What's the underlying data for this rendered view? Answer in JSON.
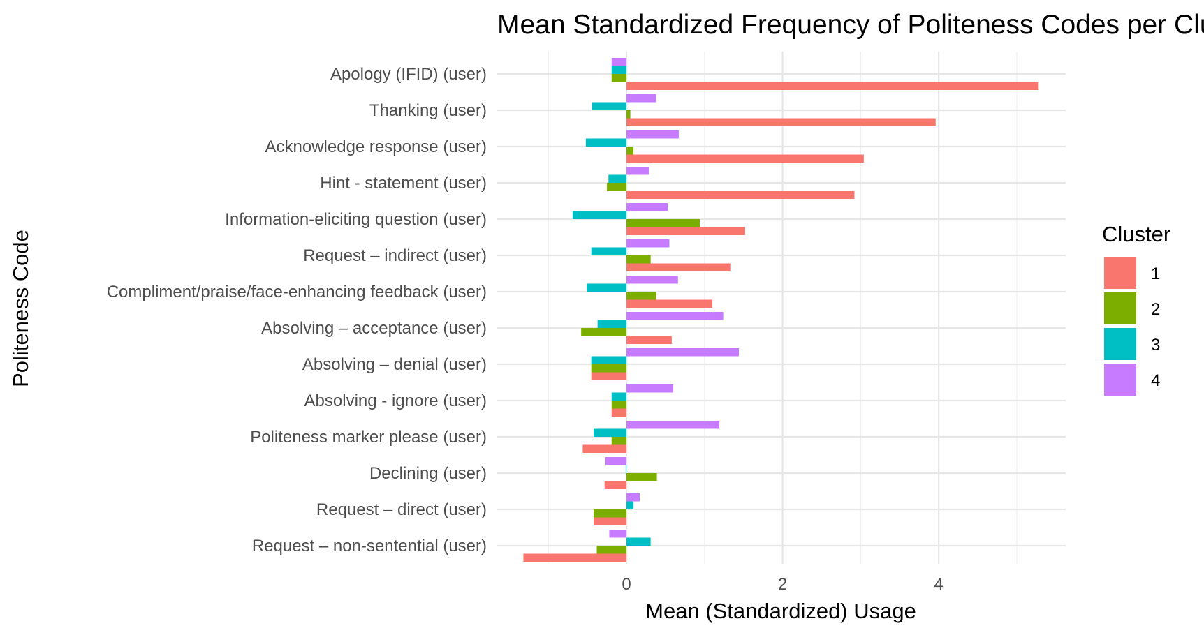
{
  "chart_data": {
    "type": "bar",
    "orientation": "horizontal",
    "title": "Mean Standardized Frequency of Politeness Codes per Cluster",
    "xlabel": "Mean (Standardized) Usage",
    "ylabel": "Politeness Code",
    "xlim": [
      -1.6,
      5.6
    ],
    "xticks": [
      0,
      2,
      4
    ],
    "grid": true,
    "legend": {
      "title": "Cluster",
      "position": "right"
    },
    "categories": [
      "Apology (IFID) (user)",
      "Thanking (user)",
      "Acknowledge response (user)",
      "Hint - statement (user)",
      "Information-eliciting question (user)",
      "Request – indirect (user)",
      "Compliment/praise/face-enhancing feedback (user)",
      "Absolving – acceptance (user)",
      "Absolving – denial (user)",
      "Absolving - ignore (user)",
      "Politeness marker please (user)",
      "Declining (user)",
      "Request – direct (user)",
      "Request – non-sentential (user)"
    ],
    "series": [
      {
        "name": "1",
        "color": "#F8766D",
        "values": [
          5.28,
          3.96,
          3.04,
          2.92,
          1.52,
          1.33,
          1.1,
          0.58,
          -0.45,
          -0.19,
          -0.56,
          -0.28,
          -0.42,
          -1.32
        ]
      },
      {
        "name": "2",
        "color": "#7CAE00",
        "values": [
          -0.19,
          0.05,
          0.09,
          -0.25,
          0.94,
          0.31,
          0.38,
          -0.58,
          -0.45,
          -0.19,
          -0.19,
          0.39,
          -0.42,
          -0.38
        ]
      },
      {
        "name": "3",
        "color": "#00BFC4",
        "values": [
          -0.19,
          -0.44,
          -0.52,
          -0.23,
          -0.69,
          -0.45,
          -0.51,
          -0.37,
          -0.45,
          -0.19,
          -0.42,
          -0.01,
          0.09,
          0.31
        ]
      },
      {
        "name": "4",
        "color": "#C77CFF",
        "values": [
          -0.19,
          0.38,
          0.67,
          0.29,
          0.53,
          0.55,
          0.66,
          1.24,
          1.44,
          0.6,
          1.19,
          -0.27,
          0.17,
          -0.22
        ]
      }
    ]
  }
}
